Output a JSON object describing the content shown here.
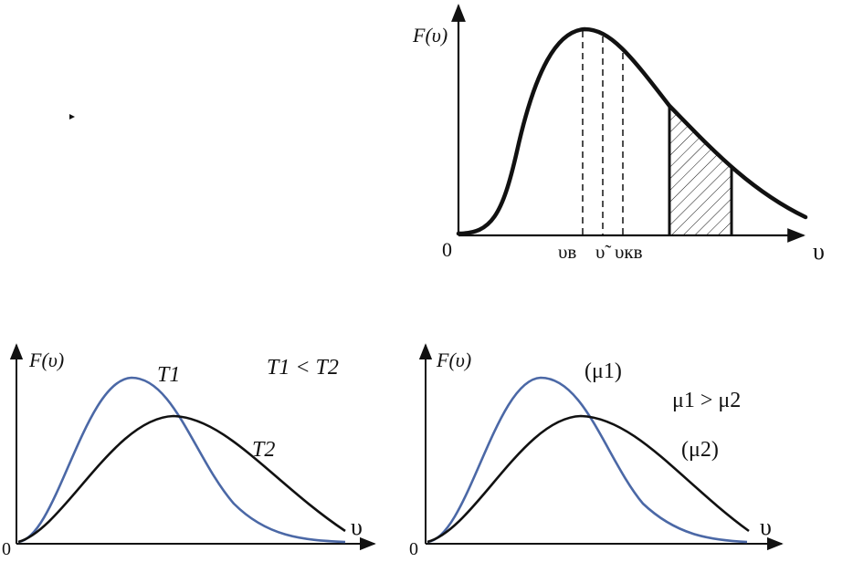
{
  "colors": {
    "ink": "#111111",
    "blue": "#4b68a6"
  },
  "top": {
    "ylabel": "F(υ)",
    "origin": "0",
    "xlabel": "υ",
    "tick_v_b": "υв",
    "tick_v_tilde": "υ̃",
    "tick_v_kv": "υкв"
  },
  "bottom_left": {
    "ylabel": "F(υ)",
    "origin": "0",
    "xlabel": "υ",
    "curve1_label": "T1",
    "curve2_label": "T2",
    "relation": "T1 < T2"
  },
  "bottom_right": {
    "ylabel": "F(υ)",
    "origin": "0",
    "xlabel": "υ",
    "curve1_label": "(μ1)",
    "curve2_label": "(μ2)",
    "relation": "μ1 > μ2"
  }
}
